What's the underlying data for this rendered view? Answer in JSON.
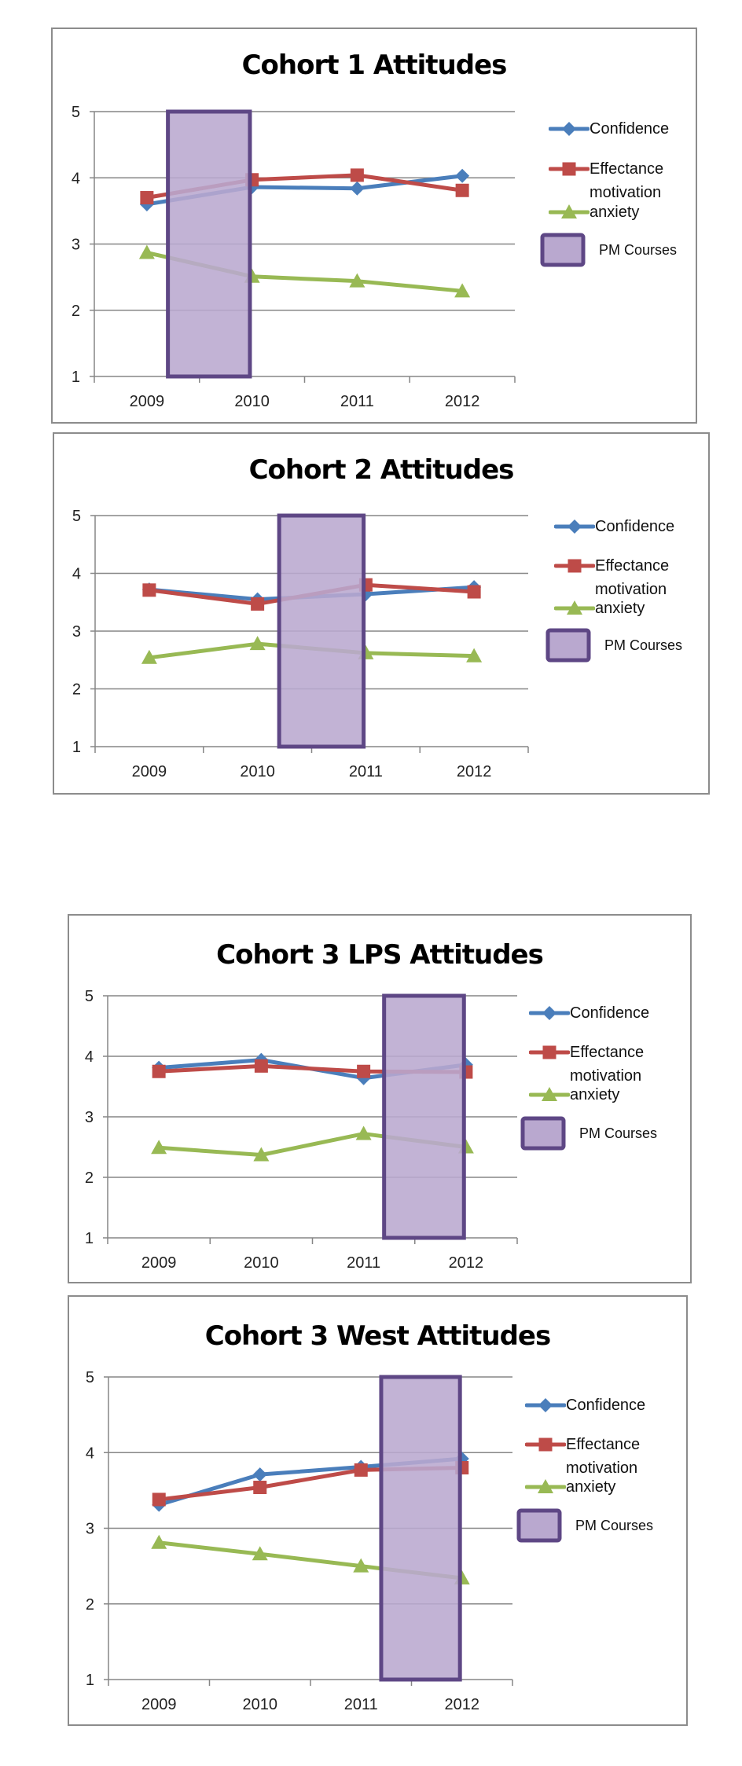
{
  "colors": {
    "confidence": "#4A7EBB",
    "effectance": "#BE4B48",
    "anxiety": "#98B954",
    "pm_fill": "#B9A8CF",
    "pm_border": "#5E4785",
    "grid": "#868686"
  },
  "chart_data": [
    {
      "type": "line",
      "title": "Cohort 1 Attitudes",
      "categories": [
        "2009",
        "2010",
        "2011",
        "2012"
      ],
      "ylim": [
        1,
        5
      ],
      "yticks": [
        "1",
        "2",
        "3",
        "4",
        "5"
      ],
      "grid": true,
      "legend_position": "right",
      "series": [
        {
          "name": "Confidence",
          "marker": "diamond",
          "values": [
            3.6,
            3.86,
            3.84,
            4.03
          ]
        },
        {
          "name": "Effectance motivation",
          "marker": "square",
          "values": [
            3.7,
            3.97,
            4.04,
            3.81
          ]
        },
        {
          "name": "anxiety",
          "marker": "triangle",
          "values": [
            2.87,
            2.51,
            2.44,
            2.29
          ]
        }
      ],
      "pm_courses": {
        "label": "PM Courses",
        "from": "2009",
        "to": "2010"
      }
    },
    {
      "type": "line",
      "title": "Cohort 2 Attitudes",
      "categories": [
        "2009",
        "2010",
        "2011",
        "2012"
      ],
      "ylim": [
        1,
        5
      ],
      "yticks": [
        "1",
        "2",
        "3",
        "4",
        "5"
      ],
      "grid": true,
      "legend_position": "right",
      "series": [
        {
          "name": "Confidence",
          "marker": "diamond",
          "values": [
            3.72,
            3.55,
            3.64,
            3.76
          ]
        },
        {
          "name": "Effectance motivation",
          "marker": "square",
          "values": [
            3.71,
            3.47,
            3.8,
            3.68
          ]
        },
        {
          "name": "anxiety",
          "marker": "triangle",
          "values": [
            2.54,
            2.78,
            2.62,
            2.57
          ]
        }
      ],
      "pm_courses": {
        "label": "PM Courses",
        "from": "2010",
        "to": "2011"
      }
    },
    {
      "type": "line",
      "title": "Cohort 3 LPS Attitudes",
      "categories": [
        "2009",
        "2010",
        "2011",
        "2012"
      ],
      "ylim": [
        1,
        5
      ],
      "yticks": [
        "1",
        "2",
        "3",
        "4",
        "5"
      ],
      "grid": true,
      "legend_position": "right",
      "series": [
        {
          "name": "Confidence",
          "marker": "diamond",
          "values": [
            3.81,
            3.94,
            3.64,
            3.86
          ]
        },
        {
          "name": "Effectance motivation",
          "marker": "square",
          "values": [
            3.75,
            3.84,
            3.75,
            3.74
          ]
        },
        {
          "name": "anxiety",
          "marker": "triangle",
          "values": [
            2.49,
            2.37,
            2.72,
            2.5
          ]
        }
      ],
      "pm_courses": {
        "label": "PM Courses",
        "from": "2011",
        "to": "2012"
      }
    },
    {
      "type": "line",
      "title": "Cohort 3 West Attitudes",
      "categories": [
        "2009",
        "2010",
        "2011",
        "2012"
      ],
      "ylim": [
        1,
        5
      ],
      "yticks": [
        "1",
        "2",
        "3",
        "4",
        "5"
      ],
      "grid": true,
      "legend_position": "right",
      "series": [
        {
          "name": "Confidence",
          "marker": "diamond",
          "values": [
            3.31,
            3.71,
            3.81,
            3.92
          ]
        },
        {
          "name": "Effectance motivation",
          "marker": "square",
          "values": [
            3.38,
            3.54,
            3.77,
            3.8
          ]
        },
        {
          "name": "anxiety",
          "marker": "triangle",
          "values": [
            2.81,
            2.66,
            2.5,
            2.34
          ]
        }
      ],
      "pm_courses": {
        "label": "PM Courses",
        "from": "2011",
        "to": "2012"
      }
    }
  ],
  "legend": {
    "confidence": "Confidence",
    "effectance_line1": "Effectance",
    "effectance_line2": "motivation",
    "anxiety": "anxiety",
    "pm": "PM Courses"
  }
}
